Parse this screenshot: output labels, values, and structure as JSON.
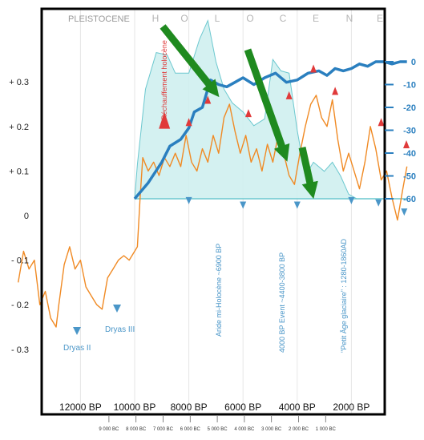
{
  "chart_data": {
    "type": "line",
    "epoch_labels": {
      "pleistocene": "PLEISTOCENE",
      "holocene_letters": [
        "H",
        "O",
        "L",
        "O",
        "C",
        "E",
        "N",
        "E"
      ]
    },
    "x_axis_labels": [
      "12000 BP",
      "10000 BP",
      "8000 BP",
      "6000 BP",
      "4000 BP",
      "2000 BP"
    ],
    "bc_labels": [
      "9 000 BC",
      "8 000 BC",
      "7 000 BC",
      "6 000 BC",
      "5 000 BC",
      "4 000 BC",
      "3 000 BC",
      "2 000 BC",
      "1 000 BC"
    ],
    "left_axis": {
      "tick_labels": [
        "+ 0.3",
        "+ 0.2",
        "+ 0.1",
        "0",
        "- 0.1",
        "- 0.2",
        "- 0.3"
      ],
      "values": [
        0.3,
        0.2,
        0.1,
        0,
        -0.1,
        -0.2,
        -0.3
      ]
    },
    "right_axis": {
      "tick_labels": [
        "0",
        "-10",
        "-20",
        "-30",
        "-40",
        "-50",
        "-60"
      ],
      "values": [
        0,
        -10,
        -20,
        -30,
        -40,
        -50,
        -60
      ]
    },
    "annotations": {
      "dryas2": "Dryas II",
      "dryas3": "Dryas III",
      "rechauffement": "Réchauffement holocène",
      "aride": "Aride mi-Holocène ~6900 BP",
      "event4000": "4000 BP Event ~4400-3800 BP",
      "petit_age": "\"Petit Âge glaciaire\" : 1280-1860AD"
    },
    "series": [
      {
        "kind": "temperature-anomaly",
        "color": "#f08a24",
        "points_bp": [
          [
            14300,
            -0.15
          ],
          [
            14100,
            -0.08
          ],
          [
            13900,
            -0.12
          ],
          [
            13700,
            -0.1
          ],
          [
            13500,
            -0.2
          ],
          [
            13300,
            -0.17
          ],
          [
            13100,
            -0.23
          ],
          [
            12900,
            -0.25
          ],
          [
            12800,
            -0.2
          ],
          [
            12600,
            -0.11
          ],
          [
            12400,
            -0.07
          ],
          [
            12200,
            -0.12
          ],
          [
            12000,
            -0.1
          ],
          [
            11800,
            -0.16
          ],
          [
            11600,
            -0.18
          ],
          [
            11400,
            -0.2
          ],
          [
            11200,
            -0.21
          ],
          [
            11000,
            -0.14
          ],
          [
            10800,
            -0.12
          ],
          [
            10600,
            -0.1
          ],
          [
            10400,
            -0.09
          ],
          [
            10200,
            -0.1
          ],
          [
            10000,
            -0.08
          ],
          [
            9900,
            -0.07
          ],
          [
            9800,
            0.04
          ],
          [
            9700,
            0.13
          ],
          [
            9500,
            0.1
          ],
          [
            9300,
            0.12
          ],
          [
            9100,
            0.09
          ],
          [
            8900,
            0.13
          ],
          [
            8700,
            0.11
          ],
          [
            8500,
            0.14
          ],
          [
            8300,
            0.11
          ],
          [
            8100,
            0.18
          ],
          [
            7900,
            0.12
          ],
          [
            7700,
            0.1
          ],
          [
            7500,
            0.15
          ],
          [
            7300,
            0.12
          ],
          [
            7100,
            0.18
          ],
          [
            6900,
            0.14
          ],
          [
            6700,
            0.22
          ],
          [
            6500,
            0.25
          ],
          [
            6300,
            0.19
          ],
          [
            6100,
            0.14
          ],
          [
            5900,
            0.18
          ],
          [
            5700,
            0.12
          ],
          [
            5500,
            0.15
          ],
          [
            5300,
            0.1
          ],
          [
            5100,
            0.16
          ],
          [
            4900,
            0.12
          ],
          [
            4700,
            0.18
          ],
          [
            4500,
            0.14
          ],
          [
            4300,
            0.09
          ],
          [
            4100,
            0.07
          ],
          [
            3900,
            0.14
          ],
          [
            3700,
            0.2
          ],
          [
            3500,
            0.25
          ],
          [
            3300,
            0.27
          ],
          [
            3100,
            0.22
          ],
          [
            2900,
            0.2
          ],
          [
            2700,
            0.26
          ],
          [
            2500,
            0.17
          ],
          [
            2300,
            0.1
          ],
          [
            2100,
            0.14
          ],
          [
            1900,
            0.1
          ],
          [
            1700,
            0.06
          ],
          [
            1500,
            0.12
          ],
          [
            1300,
            0.2
          ],
          [
            1100,
            0.15
          ],
          [
            900,
            0.08
          ],
          [
            700,
            0.1
          ],
          [
            500,
            0.04
          ],
          [
            300,
            -0.01
          ],
          [
            100,
            0.06
          ],
          [
            -50,
            0.11
          ]
        ]
      },
      {
        "kind": "depth-curve",
        "color": "#2a7fbf",
        "points_bp": [
          [
            10000,
            -60
          ],
          [
            9500,
            -53
          ],
          [
            9000,
            -44
          ],
          [
            8700,
            -37
          ],
          [
            8300,
            -34
          ],
          [
            8000,
            -29
          ],
          [
            7800,
            -22
          ],
          [
            7500,
            -20
          ],
          [
            7200,
            -8
          ],
          [
            6900,
            -10
          ],
          [
            6600,
            -11
          ],
          [
            6300,
            -9
          ],
          [
            6000,
            -7
          ],
          [
            5600,
            -10
          ],
          [
            5200,
            -7
          ],
          [
            4800,
            -5
          ],
          [
            4400,
            -9
          ],
          [
            4000,
            -8
          ],
          [
            3600,
            -5
          ],
          [
            3200,
            -4
          ],
          [
            2900,
            -6
          ],
          [
            2600,
            -3
          ],
          [
            2300,
            -4
          ],
          [
            2000,
            -3
          ],
          [
            1700,
            -1
          ],
          [
            1400,
            -2
          ],
          [
            1100,
            0
          ],
          [
            800,
            0
          ],
          [
            500,
            -1
          ],
          [
            200,
            0
          ],
          [
            -50,
            0
          ]
        ]
      },
      {
        "kind": "shaded-area",
        "color": "#bfe9e9",
        "points_bp": [
          [
            10000,
            -60
          ],
          [
            9900,
            -45
          ],
          [
            9600,
            -12
          ],
          [
            9200,
            4
          ],
          [
            8800,
            3
          ],
          [
            8500,
            -5
          ],
          [
            8000,
            -5
          ],
          [
            7600,
            10
          ],
          [
            7300,
            18
          ],
          [
            7000,
            0
          ],
          [
            6700,
            -12
          ],
          [
            6400,
            -18
          ],
          [
            6000,
            -22
          ],
          [
            5600,
            -28
          ],
          [
            5200,
            -25
          ],
          [
            4900,
            1
          ],
          [
            4600,
            -4
          ],
          [
            4300,
            -5
          ],
          [
            4000,
            -30
          ],
          [
            3700,
            -50
          ],
          [
            3400,
            -44
          ],
          [
            3000,
            -48
          ],
          [
            2700,
            -44
          ],
          [
            2400,
            -50
          ],
          [
            2100,
            -58
          ],
          [
            1800,
            -60
          ],
          [
            -50,
            -60
          ]
        ]
      }
    ]
  }
}
